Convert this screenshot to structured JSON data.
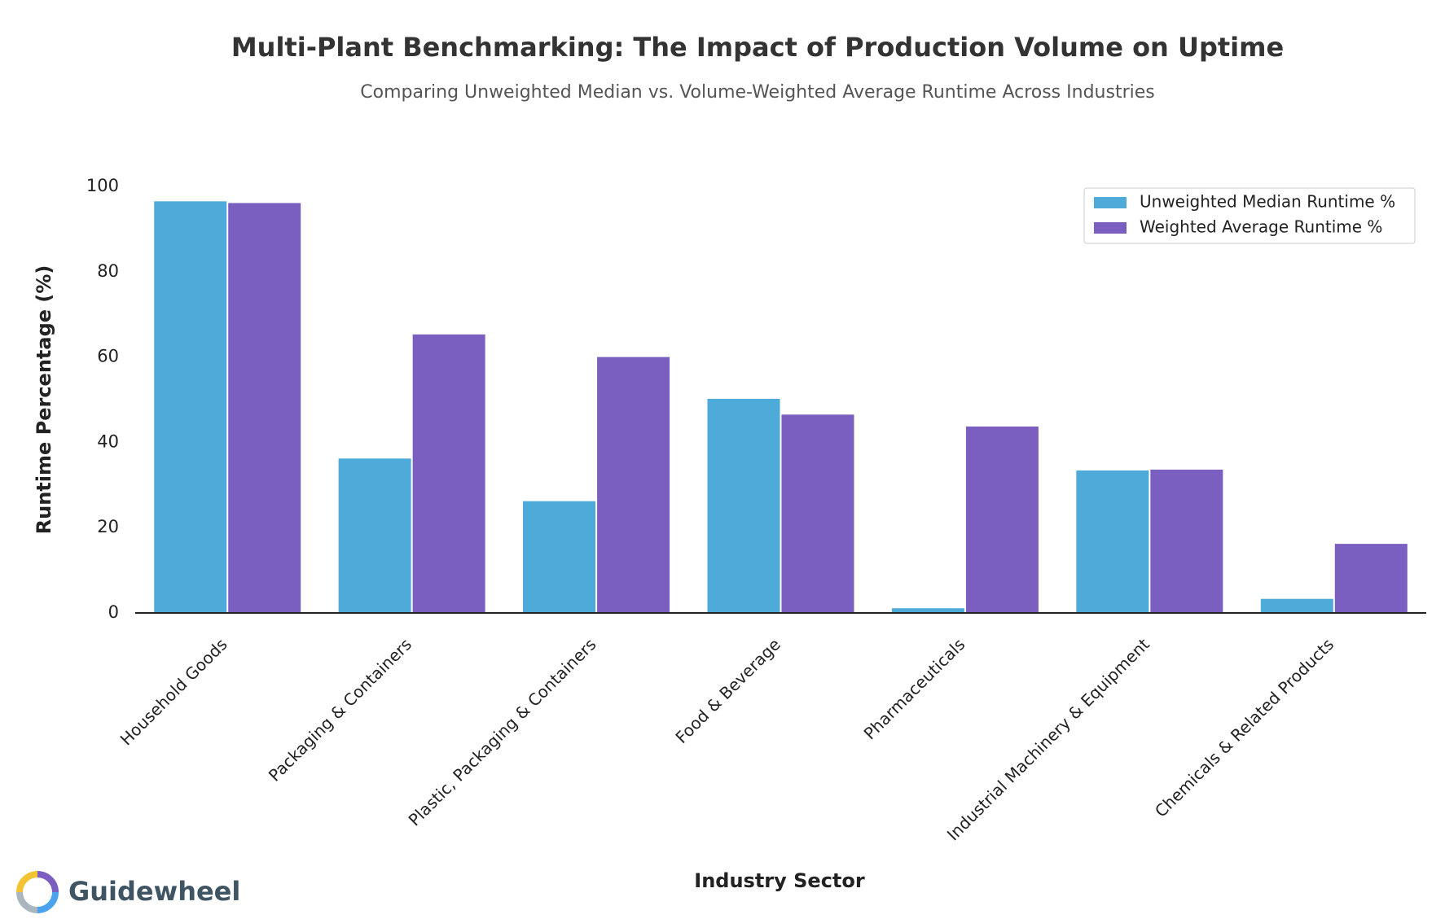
{
  "chart_data": {
    "type": "bar",
    "title": "Multi-Plant Benchmarking: The Impact of Production Volume on Uptime",
    "subtitle": "Comparing Unweighted Median vs. Volume-Weighted Average Runtime Across Industries",
    "x_label": "Industry Sector",
    "y_label": "Runtime Percentage (%)",
    "categories": [
      "Household Goods",
      "Packaging & Containers",
      "Plastic, Packaging & Containers",
      "Food & Beverage",
      "Pharmaceuticals",
      "Industrial Machinery & Equipment",
      "Chemicals & Related Products"
    ],
    "series": [
      {
        "name": "Unweighted Median Runtime %",
        "color": "#4eaad9",
        "values": [
          96.5,
          36.2,
          26.2,
          50.2,
          1.1,
          33.4,
          3.3
        ]
      },
      {
        "name": "Weighted Average Runtime %",
        "color": "#7b5fc0",
        "values": [
          96.1,
          65.3,
          60.0,
          46.5,
          43.7,
          33.6,
          16.2
        ]
      }
    ],
    "ylim": [
      0,
      100
    ],
    "yticks": [
      0,
      20,
      40,
      60,
      80,
      100
    ],
    "grid": false,
    "legend": "upper right"
  },
  "brand": "Guidewheel"
}
